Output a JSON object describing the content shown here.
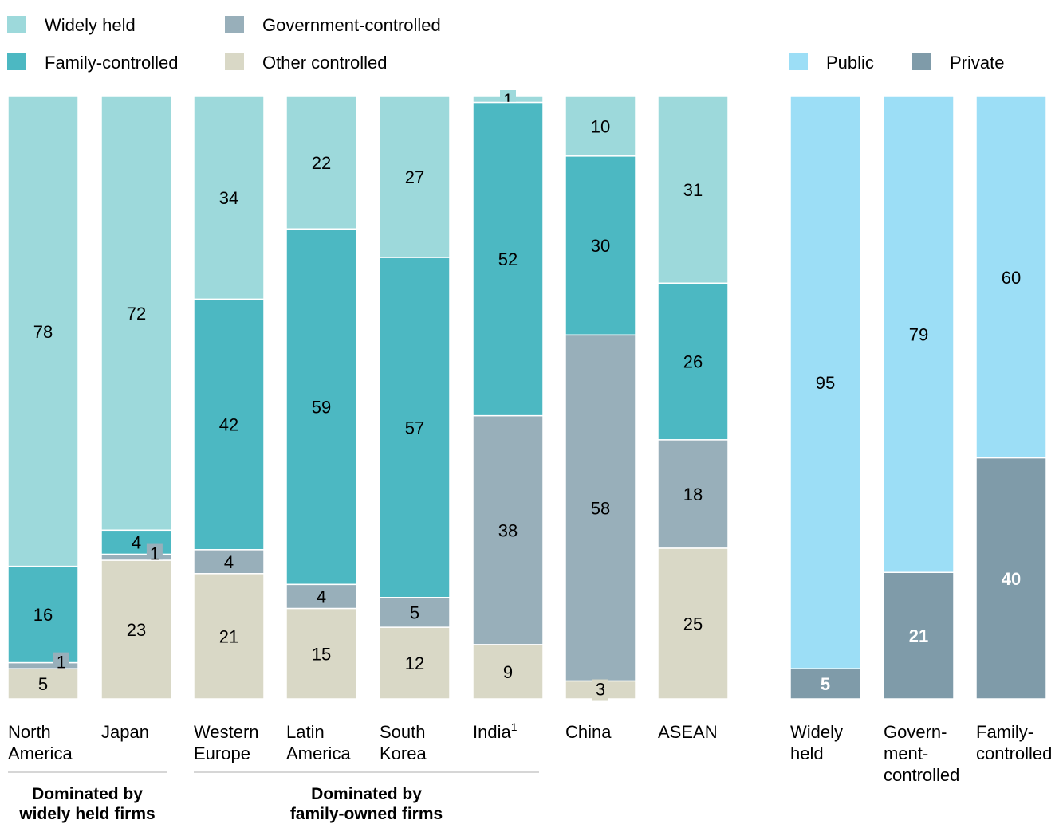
{
  "legend_left": [
    {
      "label": "Widely held",
      "color": "#9dd9db"
    },
    {
      "label": "Government-controlled",
      "color": "#98afba"
    },
    {
      "label": "Family-controlled",
      "color": "#4cb8c2"
    },
    {
      "label": "Other controlled",
      "color": "#d9d8c6"
    }
  ],
  "legend_right": [
    {
      "label": "Public",
      "color": "#9cdef6"
    },
    {
      "label": "Private",
      "color": "#7f9ba9"
    }
  ],
  "chart_data": [
    {
      "type": "bar",
      "stacked": true,
      "orientation": "vertical",
      "categories": [
        "North America",
        "Japan",
        "Western Europe",
        "Latin America",
        "South Korea",
        "India",
        "China",
        "ASEAN"
      ],
      "category_lines": [
        [
          "North",
          "America"
        ],
        [
          "Japan"
        ],
        [
          "Western",
          "Europe"
        ],
        [
          "Latin",
          "America"
        ],
        [
          "South",
          "Korea"
        ],
        [
          "India"
        ],
        [
          "China"
        ],
        [
          "ASEAN"
        ]
      ],
      "footnote_marker": {
        "category_index": 5,
        "text": "1"
      },
      "series": [
        {
          "name": "Widely held",
          "color": "#9dd9db",
          "values": [
            78,
            72,
            34,
            22,
            27,
            1,
            10,
            31
          ]
        },
        {
          "name": "Family-controlled",
          "color": "#4cb8c2",
          "values": [
            16,
            4,
            42,
            59,
            57,
            52,
            30,
            26
          ]
        },
        {
          "name": "Government-controlled",
          "color": "#98afba",
          "values": [
            1,
            1,
            4,
            4,
            5,
            38,
            58,
            18
          ]
        },
        {
          "name": "Other controlled",
          "color": "#d9d8c6",
          "values": [
            5,
            23,
            21,
            15,
            12,
            9,
            3,
            25
          ]
        }
      ],
      "groups": [
        {
          "lines": [
            "Dominated by",
            "widely held firms"
          ],
          "categories": [
            0,
            1
          ]
        },
        {
          "lines": [
            "Dominated by",
            "family-owned firms"
          ],
          "categories": [
            2,
            3,
            4,
            5
          ]
        }
      ]
    },
    {
      "type": "bar",
      "stacked": true,
      "orientation": "vertical",
      "categories": [
        "Widely held",
        "Government-controlled",
        "Family-controlled"
      ],
      "category_lines": [
        [
          "Widely",
          "held"
        ],
        [
          "Govern-",
          "ment-",
          "controlled"
        ],
        [
          "Family-",
          "controlled"
        ]
      ],
      "series": [
        {
          "name": "Public",
          "color": "#9cdef6",
          "values": [
            95,
            79,
            60
          ]
        },
        {
          "name": "Private",
          "color": "#7f9ba9",
          "values": [
            5,
            21,
            40
          ]
        }
      ]
    }
  ]
}
